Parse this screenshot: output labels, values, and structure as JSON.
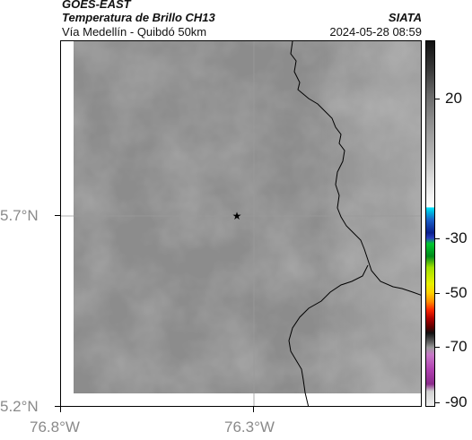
{
  "header": {
    "satellite": "GOES-EAST",
    "product": "Temperatura de Brillo CH13",
    "org": "SIATA",
    "region": "Vía Medellín - Quibdó 50km",
    "datetime": "2024-05-28 08:59"
  },
  "axes": {
    "lat_labels": [
      "5.7°N",
      "5.2°N"
    ],
    "lon_labels": [
      "76.8°W",
      "76.3°W"
    ]
  },
  "colorbar": {
    "tick_labels": [
      "20",
      "-30",
      "-50",
      "-70",
      "-90"
    ]
  },
  "colors": {
    "background_gray": "#8c8c8c",
    "border_line": "#000000"
  },
  "icons": {
    "marker": "star-icon"
  }
}
